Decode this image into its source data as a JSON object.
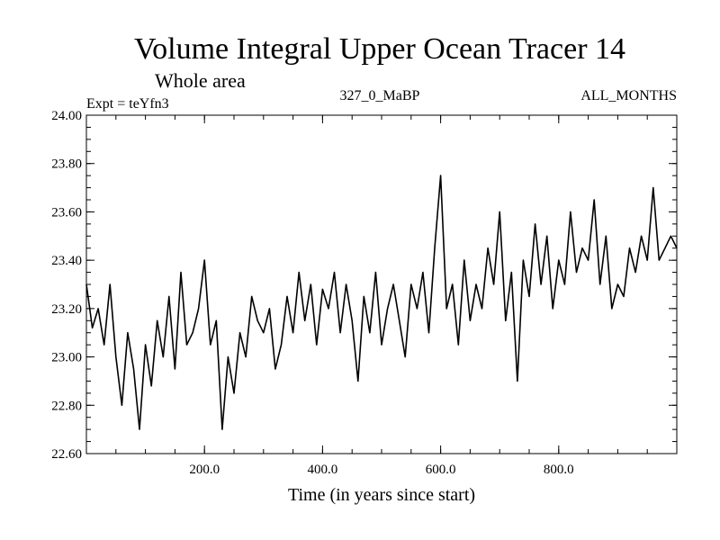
{
  "chart_data": {
    "type": "line",
    "title": "Volume Integral Upper Ocean Tracer 14",
    "subtitle": "Whole area",
    "expt_label": "Expt = teYfn3",
    "period_label": "327_0_MaBP",
    "months_label": "ALL_MONTHS",
    "xlabel": "Time (in years since start)",
    "ylabel": "",
    "xlim": [
      0,
      1000
    ],
    "ylim": [
      22.6,
      24.0
    ],
    "x_ticks": [
      200,
      400,
      600,
      800
    ],
    "x_tick_labels": [
      "200.0",
      "400.0",
      "600.0",
      "800.0"
    ],
    "y_ticks": [
      22.6,
      22.8,
      23.0,
      23.2,
      23.4,
      23.6,
      23.8,
      24.0
    ],
    "y_tick_labels": [
      "22.60",
      "22.80",
      "23.00",
      "23.20",
      "23.40",
      "23.60",
      "23.80",
      "24.00"
    ],
    "line_color": "#000000",
    "series": [
      {
        "name": "Tracer 14",
        "x": [
          0,
          10,
          20,
          30,
          40,
          50,
          60,
          70,
          80,
          90,
          100,
          110,
          120,
          130,
          140,
          150,
          160,
          170,
          180,
          190,
          200,
          210,
          220,
          230,
          240,
          250,
          260,
          270,
          280,
          290,
          300,
          310,
          320,
          330,
          340,
          350,
          360,
          370,
          380,
          390,
          400,
          410,
          420,
          430,
          440,
          450,
          460,
          470,
          480,
          490,
          500,
          510,
          520,
          530,
          540,
          550,
          560,
          570,
          580,
          590,
          600,
          610,
          620,
          630,
          640,
          650,
          660,
          670,
          680,
          690,
          700,
          710,
          720,
          730,
          740,
          750,
          760,
          770,
          780,
          790,
          800,
          810,
          820,
          830,
          840,
          850,
          860,
          870,
          880,
          890,
          900,
          910,
          920,
          930,
          940,
          950,
          960,
          970,
          980,
          990,
          1000
        ],
        "values": [
          23.3,
          23.12,
          23.2,
          23.05,
          23.3,
          23.0,
          22.8,
          23.1,
          22.95,
          22.7,
          23.05,
          22.88,
          23.15,
          23.0,
          23.25,
          22.95,
          23.35,
          23.05,
          23.1,
          23.2,
          23.4,
          23.05,
          23.15,
          22.7,
          23.0,
          22.85,
          23.1,
          23.0,
          23.25,
          23.15,
          23.1,
          23.2,
          22.95,
          23.05,
          23.25,
          23.1,
          23.35,
          23.15,
          23.3,
          23.05,
          23.28,
          23.2,
          23.35,
          23.1,
          23.3,
          23.15,
          22.9,
          23.25,
          23.1,
          23.35,
          23.05,
          23.2,
          23.3,
          23.15,
          23.0,
          23.3,
          23.2,
          23.35,
          23.1,
          23.45,
          23.75,
          23.2,
          23.3,
          23.05,
          23.4,
          23.15,
          23.3,
          23.2,
          23.45,
          23.3,
          23.6,
          23.15,
          23.35,
          22.9,
          23.4,
          23.25,
          23.55,
          23.3,
          23.5,
          23.2,
          23.4,
          23.3,
          23.6,
          23.35,
          23.45,
          23.4,
          23.65,
          23.3,
          23.5,
          23.2,
          23.3,
          23.25,
          23.45,
          23.35,
          23.5,
          23.4,
          23.7,
          23.4,
          23.45,
          23.5,
          23.45
        ]
      }
    ]
  }
}
